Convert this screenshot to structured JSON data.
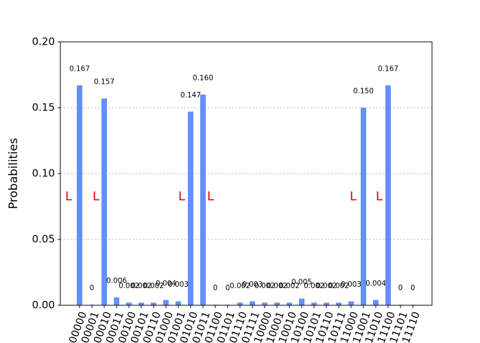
{
  "chart_data": {
    "type": "bar",
    "ylabel": "Probabilities",
    "categories": [
      "00000",
      "00001",
      "00010",
      "00011",
      "00100",
      "00101",
      "00110",
      "01000",
      "01001",
      "01010",
      "01011",
      "01100",
      "01101",
      "01110",
      "01111",
      "10000",
      "10001",
      "10010",
      "10100",
      "10101",
      "10110",
      "10111",
      "11000",
      "11001",
      "11010",
      "11100",
      "11101",
      "11110"
    ],
    "values": [
      0.167,
      0.0004,
      0.157,
      0.006,
      0.002,
      0.002,
      0.002,
      0.004,
      0.003,
      0.147,
      0.16,
      0.0004,
      0.0004,
      0.002,
      0.003,
      0.002,
      0.002,
      0.002,
      0.005,
      0.002,
      0.002,
      0.002,
      0.003,
      0.15,
      0.004,
      0.167,
      0.0004,
      0.0004
    ],
    "value_labels": [
      "0.167",
      "0",
      "0.157",
      "0.006",
      "0.002",
      "0.002",
      "0.002",
      "0.004",
      "0.003",
      "0.147",
      "0.160",
      "0",
      "0",
      "0.002",
      "0.003",
      "0.002",
      "0.002",
      "0.002",
      "0.005",
      "0.002",
      "0.002",
      "0.002",
      "0.003",
      "0.150",
      "0.004",
      "0.167",
      "0",
      "0"
    ],
    "color": "#648fff",
    "ylim": [
      0,
      0.2
    ],
    "yticks": [
      {
        "value": 0,
        "label": "0.00"
      },
      {
        "value": 0.05,
        "label": "0.05"
      },
      {
        "value": 0.1,
        "label": "0.10"
      },
      {
        "value": 0.15,
        "label": "0.15"
      },
      {
        "value": 0.2,
        "label": "0.20"
      }
    ],
    "grid": true,
    "annotations": [
      {
        "text": "L"
      },
      {
        "text": "L"
      },
      {
        "text": "L"
      },
      {
        "text": "L"
      },
      {
        "text": "L"
      },
      {
        "text": "L"
      }
    ]
  }
}
